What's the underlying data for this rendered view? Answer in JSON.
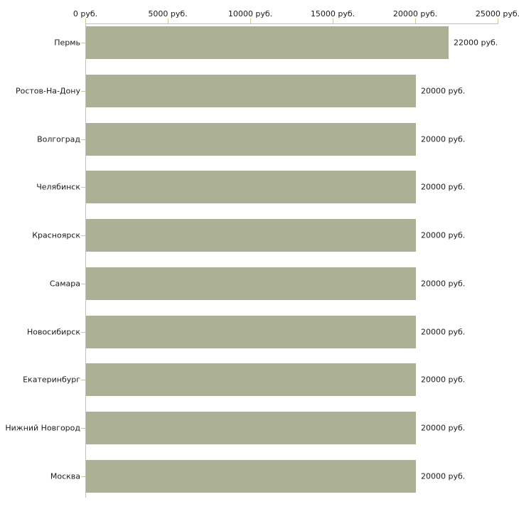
{
  "chart_data": {
    "type": "bar",
    "orientation": "horizontal",
    "categories": [
      "Пермь",
      "Ростов-На-Дону",
      "Волгоград",
      "Челябинск",
      "Красноярск",
      "Самара",
      "Новосибирск",
      "Екатеринбург",
      "Нижний Новгород",
      "Москва"
    ],
    "values": [
      22000,
      20000,
      20000,
      20000,
      20000,
      20000,
      20000,
      20000,
      20000,
      20000
    ],
    "value_labels": [
      "22000 руб.",
      "20000 руб.",
      "20000 руб.",
      "20000 руб.",
      "20000 руб.",
      "20000 руб.",
      "20000 руб.",
      "20000 руб.",
      "20000 руб.",
      "20000 руб."
    ],
    "x_axis": {
      "position": "top",
      "min": 0,
      "max": 25000,
      "ticks": [
        0,
        5000,
        10000,
        15000,
        20000,
        25000
      ],
      "tick_labels": [
        "0 руб.",
        "5000 руб.",
        "10000 руб.",
        "15000 руб.",
        "20000 руб.",
        "25000 руб."
      ]
    },
    "grid": false,
    "legend": false,
    "colors": {
      "bar": "#acb095",
      "axis_line": "#c0c0c0",
      "tick_mark": "#c8c8a0",
      "text": "#1a1a1a",
      "background": "#ffffff"
    }
  }
}
